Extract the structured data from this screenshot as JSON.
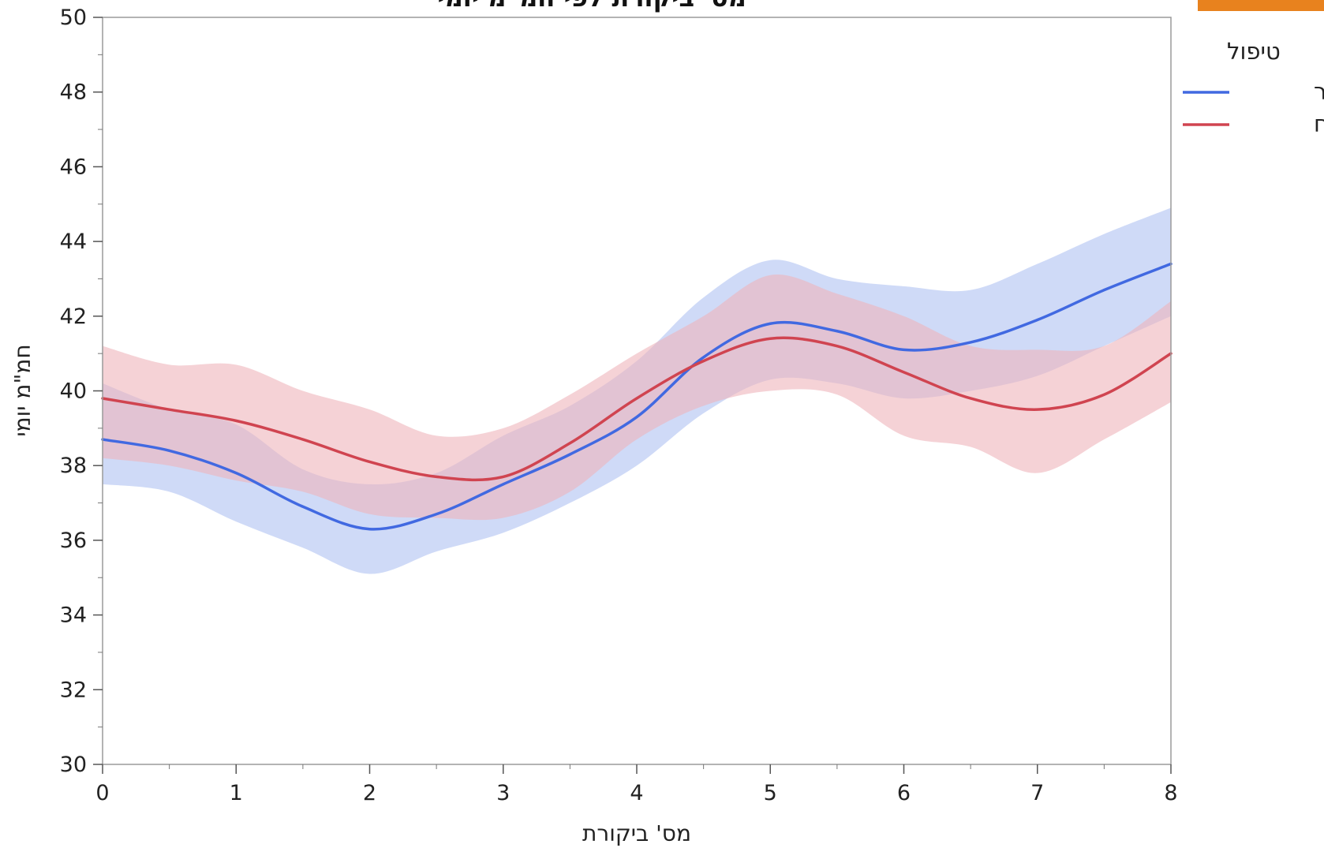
{
  "chart_data": {
    "type": "line",
    "title": "מס' ביקורת לפי חמ\"מ יומי",
    "xlabel": "מס' ביקורת",
    "ylabel": "חמ\"מ יומי",
    "xlim": [
      0,
      8
    ],
    "ylim": [
      30,
      50
    ],
    "x_ticks": [
      0,
      1,
      2,
      3,
      4,
      5,
      6,
      7,
      8
    ],
    "y_ticks": [
      30,
      32,
      34,
      36,
      38,
      40,
      42,
      44,
      46,
      48,
      50
    ],
    "legend": {
      "title": "טיפול",
      "position": "right"
    },
    "x": [
      0,
      0.5,
      1,
      1.5,
      2,
      2.5,
      3,
      3.5,
      4,
      4.5,
      5,
      5.5,
      6,
      6.5,
      7,
      7.5,
      8
    ],
    "series": [
      {
        "name": "קילטור",
        "color": "#4169E1",
        "band_color": "#AFC2F2",
        "values": [
          38.7,
          38.4,
          37.8,
          36.9,
          36.3,
          36.7,
          37.5,
          38.3,
          39.3,
          40.9,
          41.8,
          41.6,
          41.1,
          41.3,
          41.9,
          42.7,
          43.4
        ],
        "lower": [
          37.5,
          37.3,
          36.5,
          35.8,
          35.1,
          35.7,
          36.2,
          37.0,
          38.0,
          39.4,
          40.3,
          40.2,
          39.8,
          40.0,
          40.4,
          41.2,
          42.0
        ],
        "upper": [
          40.2,
          39.5,
          39.1,
          37.9,
          37.5,
          37.8,
          38.8,
          39.6,
          40.8,
          42.5,
          43.5,
          43.0,
          42.8,
          42.7,
          43.4,
          44.2,
          44.9
        ]
      },
      {
        "name": "תיחוח",
        "color": "#D04450",
        "band_color": "#EFB4BB",
        "values": [
          39.8,
          39.5,
          39.2,
          38.7,
          38.1,
          37.7,
          37.7,
          38.6,
          39.8,
          40.8,
          41.4,
          41.2,
          40.5,
          39.8,
          39.5,
          39.9,
          41.0
        ],
        "lower": [
          38.2,
          38.0,
          37.6,
          37.3,
          36.7,
          36.6,
          36.6,
          37.3,
          38.7,
          39.6,
          40.0,
          39.9,
          38.8,
          38.5,
          37.8,
          38.7,
          39.7
        ],
        "upper": [
          41.2,
          40.7,
          40.7,
          40.0,
          39.5,
          38.8,
          39.0,
          39.9,
          41.0,
          42.0,
          43.1,
          42.6,
          42.0,
          41.2,
          41.1,
          41.2,
          42.4
        ]
      }
    ]
  },
  "corner_badge": {
    "color": "#E8821E"
  }
}
